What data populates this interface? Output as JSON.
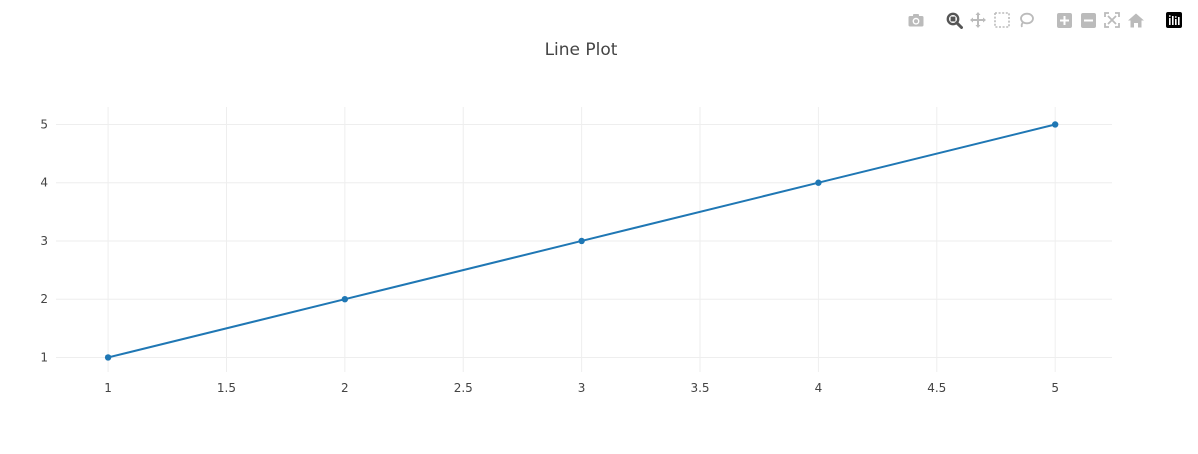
{
  "modebar": {
    "buttons": [
      {
        "name": "camera-icon",
        "group": 0
      },
      {
        "name": "zoom-icon",
        "group": 1,
        "active": true
      },
      {
        "name": "pan-icon",
        "group": 1
      },
      {
        "name": "box-select-icon",
        "group": 1
      },
      {
        "name": "lasso-select-icon",
        "group": 1
      },
      {
        "name": "zoom-in-icon",
        "group": 2
      },
      {
        "name": "zoom-out-icon",
        "group": 2
      },
      {
        "name": "autoscale-icon",
        "group": 2
      },
      {
        "name": "reset-axes-icon",
        "group": 2
      },
      {
        "name": "plotly-logo-icon",
        "group": 3
      }
    ],
    "icon_color": "#bbbbbb",
    "active_color": "#555555"
  },
  "chart_data": {
    "type": "line",
    "title": "Line Plot",
    "xlabel": "",
    "ylabel": "",
    "x": [
      1,
      2,
      3,
      4,
      5
    ],
    "series": [
      {
        "values": [
          1,
          2,
          3,
          4,
          5
        ],
        "color": "#1f77b4",
        "mode": "lines+markers"
      }
    ],
    "xlim": [
      0.78,
      5.24
    ],
    "ylim": [
      0.75,
      5.3
    ],
    "xticks": [
      1,
      1.5,
      2,
      2.5,
      3,
      3.5,
      4,
      4.5,
      5
    ],
    "xtick_labels": [
      "1",
      "1.5",
      "2",
      "2.5",
      "3",
      "3.5",
      "4",
      "4.5",
      "5"
    ],
    "yticks": [
      1,
      2,
      3,
      4,
      5
    ],
    "ytick_labels": [
      "1",
      "2",
      "3",
      "4",
      "5"
    ],
    "grid": true,
    "grid_color": "#eeeeee",
    "legend": "none"
  }
}
